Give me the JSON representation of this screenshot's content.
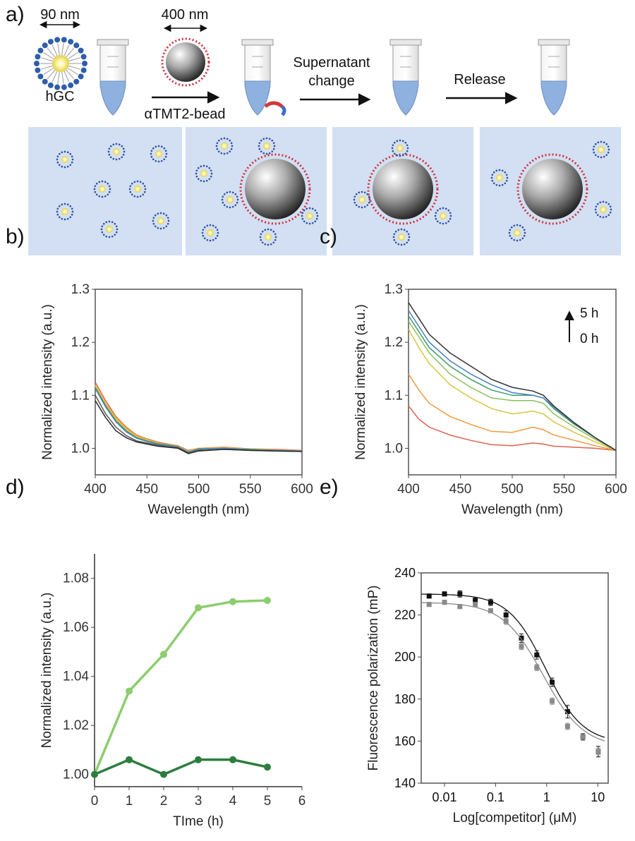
{
  "panels": {
    "a": {
      "label": "a)",
      "size_hgc": "90 nm",
      "size_bead": "400 nm",
      "hgc": "hGC",
      "bead": "αTMT2-bead",
      "step2": [
        "Supernatant",
        "change"
      ],
      "step3": "Release"
    },
    "b": {
      "label": "b)"
    },
    "c": {
      "label": "c)",
      "time_high": "5 h",
      "time_low": "0 h"
    },
    "d": {
      "label": "d)"
    },
    "e": {
      "label": "e)"
    }
  },
  "chart_data": [
    {
      "panel": "b",
      "type": "line",
      "xlabel": "Wavelength (nm)",
      "ylabel": "Normalized intensity (a.u.)",
      "xlim": [
        400,
        600
      ],
      "ylim": [
        0.95,
        1.3
      ],
      "xticks": [
        400,
        450,
        500,
        550,
        600
      ],
      "yticks": [
        "1.0",
        "1.1",
        "1.2",
        "1.3"
      ],
      "series": [
        {
          "color": "#e26a4f",
          "points": [
            [
              400,
              1.125
            ],
            [
              410,
              1.09
            ],
            [
              420,
              1.06
            ],
            [
              430,
              1.04
            ],
            [
              440,
              1.025
            ],
            [
              450,
              1.018
            ],
            [
              460,
              1.012
            ],
            [
              470,
              1.008
            ],
            [
              480,
              1.005
            ],
            [
              490,
              0.996
            ],
            [
              500,
              1.0
            ],
            [
              525,
              1.002
            ],
            [
              550,
              0.999
            ],
            [
              575,
              0.998
            ],
            [
              600,
              0.996
            ]
          ]
        },
        {
          "color": "#f0a040",
          "points": [
            [
              400,
              1.12
            ],
            [
              410,
              1.085
            ],
            [
              420,
              1.058
            ],
            [
              430,
              1.038
            ],
            [
              440,
              1.024
            ],
            [
              450,
              1.017
            ],
            [
              460,
              1.011
            ],
            [
              470,
              1.007
            ],
            [
              480,
              1.004
            ],
            [
              490,
              0.995
            ],
            [
              500,
              1.0
            ],
            [
              525,
              1.001
            ],
            [
              550,
              0.999
            ],
            [
              575,
              0.997
            ],
            [
              600,
              0.995
            ]
          ]
        },
        {
          "color": "#d6cd3e",
          "points": [
            [
              400,
              1.118
            ],
            [
              410,
              1.082
            ],
            [
              420,
              1.055
            ],
            [
              430,
              1.036
            ],
            [
              440,
              1.022
            ],
            [
              450,
              1.016
            ],
            [
              460,
              1.01
            ],
            [
              470,
              1.006
            ],
            [
              480,
              1.003
            ],
            [
              490,
              0.994
            ],
            [
              500,
              0.999
            ],
            [
              525,
              1.001
            ],
            [
              550,
              0.998
            ],
            [
              575,
              0.997
            ],
            [
              600,
              0.995
            ]
          ]
        },
        {
          "color": "#3f9b6a",
          "points": [
            [
              400,
              1.115
            ],
            [
              410,
              1.08
            ],
            [
              420,
              1.052
            ],
            [
              430,
              1.033
            ],
            [
              440,
              1.02
            ],
            [
              450,
              1.014
            ],
            [
              460,
              1.009
            ],
            [
              470,
              1.006
            ],
            [
              480,
              1.003
            ],
            [
              490,
              0.993
            ],
            [
              500,
              0.999
            ],
            [
              525,
              1.0
            ],
            [
              550,
              0.998
            ],
            [
              575,
              0.996
            ],
            [
              600,
              0.995
            ]
          ]
        },
        {
          "color": "#4a7fc1",
          "points": [
            [
              400,
              1.113
            ],
            [
              410,
              1.078
            ],
            [
              420,
              1.05
            ],
            [
              430,
              1.031
            ],
            [
              440,
              1.019
            ],
            [
              450,
              1.013
            ],
            [
              460,
              1.008
            ],
            [
              470,
              1.005
            ],
            [
              480,
              1.002
            ],
            [
              490,
              0.993
            ],
            [
              500,
              0.998
            ],
            [
              525,
              1.0
            ],
            [
              550,
              0.997
            ],
            [
              575,
              0.996
            ],
            [
              600,
              0.995
            ]
          ]
        },
        {
          "color": "#555555",
          "points": [
            [
              400,
              1.1
            ],
            [
              410,
              1.065
            ],
            [
              420,
              1.04
            ],
            [
              430,
              1.024
            ],
            [
              440,
              1.014
            ],
            [
              450,
              1.01
            ],
            [
              460,
              1.006
            ],
            [
              470,
              1.003
            ],
            [
              480,
              1.001
            ],
            [
              490,
              0.991
            ],
            [
              500,
              0.996
            ],
            [
              525,
              0.998
            ],
            [
              550,
              0.996
            ],
            [
              575,
              0.995
            ],
            [
              600,
              0.994
            ]
          ]
        },
        {
          "color": "#2a2a2a",
          "points": [
            [
              400,
              1.09
            ],
            [
              410,
              1.058
            ],
            [
              420,
              1.033
            ],
            [
              430,
              1.02
            ],
            [
              440,
              1.012
            ],
            [
              450,
              1.008
            ],
            [
              460,
              1.004
            ],
            [
              470,
              1.002
            ],
            [
              480,
              1.0
            ],
            [
              490,
              0.99
            ],
            [
              500,
              0.995
            ],
            [
              525,
              0.998
            ],
            [
              550,
              0.996
            ],
            [
              575,
              0.995
            ],
            [
              600,
              0.994
            ]
          ]
        }
      ]
    },
    {
      "panel": "c",
      "type": "line",
      "xlabel": "Wavelength (nm)",
      "ylabel": "Normalized intensity (a.u.)",
      "xlim": [
        400,
        600
      ],
      "ylim": [
        0.95,
        1.3
      ],
      "xticks": [
        400,
        450,
        500,
        550,
        600
      ],
      "yticks": [
        "1.0",
        "1.1",
        "1.2",
        "1.3"
      ],
      "series": [
        {
          "color": "#e0604e",
          "points": [
            [
              400,
              1.08
            ],
            [
              410,
              1.055
            ],
            [
              420,
              1.04
            ],
            [
              440,
              1.025
            ],
            [
              460,
              1.015
            ],
            [
              480,
              1.007
            ],
            [
              500,
              1.005
            ],
            [
              520,
              1.01
            ],
            [
              530,
              1.008
            ],
            [
              540,
              1.004
            ],
            [
              560,
              1.002
            ],
            [
              580,
              1.0
            ],
            [
              600,
              0.996
            ]
          ]
        },
        {
          "color": "#f09a3c",
          "points": [
            [
              400,
              1.14
            ],
            [
              410,
              1.11
            ],
            [
              420,
              1.085
            ],
            [
              440,
              1.06
            ],
            [
              460,
              1.045
            ],
            [
              480,
              1.032
            ],
            [
              500,
              1.03
            ],
            [
              520,
              1.04
            ],
            [
              530,
              1.035
            ],
            [
              540,
              1.025
            ],
            [
              560,
              1.015
            ],
            [
              580,
              1.005
            ],
            [
              600,
              0.996
            ]
          ]
        },
        {
          "color": "#d8c63f",
          "points": [
            [
              400,
              1.225
            ],
            [
              410,
              1.19
            ],
            [
              420,
              1.16
            ],
            [
              440,
              1.12
            ],
            [
              460,
              1.095
            ],
            [
              480,
              1.075
            ],
            [
              500,
              1.065
            ],
            [
              520,
              1.07
            ],
            [
              530,
              1.065
            ],
            [
              540,
              1.05
            ],
            [
              560,
              1.03
            ],
            [
              580,
              1.012
            ],
            [
              600,
              0.996
            ]
          ]
        },
        {
          "color": "#8cbf5a",
          "points": [
            [
              400,
              1.24
            ],
            [
              410,
              1.21
            ],
            [
              420,
              1.18
            ],
            [
              440,
              1.14
            ],
            [
              460,
              1.115
            ],
            [
              480,
              1.095
            ],
            [
              500,
              1.09
            ],
            [
              520,
              1.09
            ],
            [
              530,
              1.085
            ],
            [
              540,
              1.065
            ],
            [
              560,
              1.04
            ],
            [
              580,
              1.017
            ],
            [
              600,
              0.996
            ]
          ]
        },
        {
          "color": "#3e9a6a",
          "points": [
            [
              400,
              1.25
            ],
            [
              410,
              1.22
            ],
            [
              420,
              1.19
            ],
            [
              440,
              1.155
            ],
            [
              460,
              1.13
            ],
            [
              480,
              1.11
            ],
            [
              500,
              1.1
            ],
            [
              520,
              1.1
            ],
            [
              530,
              1.095
            ],
            [
              540,
              1.075
            ],
            [
              560,
              1.045
            ],
            [
              580,
              1.02
            ],
            [
              600,
              0.996
            ]
          ]
        },
        {
          "color": "#4a7fc1",
          "points": [
            [
              400,
              1.26
            ],
            [
              410,
              1.23
            ],
            [
              420,
              1.2
            ],
            [
              440,
              1.165
            ],
            [
              460,
              1.14
            ],
            [
              480,
              1.12
            ],
            [
              500,
              1.105
            ],
            [
              520,
              1.1
            ],
            [
              530,
              1.095
            ],
            [
              540,
              1.078
            ],
            [
              560,
              1.047
            ],
            [
              580,
              1.02
            ],
            [
              600,
              0.996
            ]
          ]
        },
        {
          "color": "#333333",
          "points": [
            [
              400,
              1.275
            ],
            [
              410,
              1.245
            ],
            [
              420,
              1.215
            ],
            [
              440,
              1.18
            ],
            [
              460,
              1.155
            ],
            [
              480,
              1.13
            ],
            [
              500,
              1.115
            ],
            [
              520,
              1.108
            ],
            [
              530,
              1.1
            ],
            [
              540,
              1.08
            ],
            [
              560,
              1.048
            ],
            [
              580,
              1.02
            ],
            [
              600,
              0.996
            ]
          ]
        }
      ]
    },
    {
      "panel": "d",
      "type": "line",
      "xlabel": "TIme (h)",
      "ylabel": "Normalized intensity (a.u.)",
      "xlim": [
        0,
        6
      ],
      "ylim": [
        0.995,
        1.09
      ],
      "xticks": [
        0,
        1,
        2,
        3,
        4,
        5,
        6
      ],
      "yticks": [
        "1.00",
        "1.02",
        "1.04",
        "1.06",
        "1.08"
      ],
      "series": [
        {
          "color": "#8ccd6e",
          "x": [
            0,
            1,
            2,
            3,
            4,
            5
          ],
          "values": [
            1.0,
            1.034,
            1.049,
            1.068,
            1.0705,
            1.071
          ]
        },
        {
          "color": "#2c7d3e",
          "x": [
            0,
            1,
            2,
            3,
            4,
            5
          ],
          "values": [
            1.0,
            1.006,
            1.0,
            1.006,
            1.006,
            1.003
          ]
        }
      ]
    },
    {
      "panel": "e",
      "type": "scatter",
      "xlabel": "Log[competitor] (μM)",
      "ylabel": "Fluorescence polarization (mP)",
      "xscale": "log",
      "xlim": [
        0.0035,
        16
      ],
      "ylim": [
        140,
        240
      ],
      "xticks": [
        0.01,
        0.1,
        1,
        10
      ],
      "xticklabels": [
        "0.01",
        "0.1",
        "1",
        "10"
      ],
      "yticks": [
        140,
        160,
        180,
        200,
        220,
        240
      ],
      "series": [
        {
          "color": "#111111",
          "marker": "square",
          "x": [
            0.005,
            0.01,
            0.02,
            0.04,
            0.08,
            0.16,
            0.32,
            0.64,
            1.28,
            2.56,
            5.12,
            10.24
          ],
          "values": [
            229,
            230,
            230,
            227,
            226,
            220,
            209,
            201,
            188,
            174,
            162,
            155
          ],
          "err": [
            1,
            1,
            1.5,
            1,
            1.5,
            2,
            2,
            2,
            2,
            3,
            1.5,
            2.5
          ],
          "fit": {
            "top": 230,
            "bottom": 159,
            "ic50": 0.95,
            "hill": 1.2
          }
        },
        {
          "color": "#8a8a8a",
          "marker": "square",
          "x": [
            0.005,
            0.01,
            0.02,
            0.04,
            0.08,
            0.16,
            0.32,
            0.64,
            1.28,
            2.56,
            5.12,
            10.24
          ],
          "values": [
            225,
            226,
            224,
            225,
            222,
            217,
            205,
            195,
            179,
            167,
            162,
            155
          ],
          "err": [
            1,
            1,
            1,
            1,
            1,
            1.5,
            1.5,
            1.5,
            1.5,
            1.5,
            1,
            1.5
          ],
          "fit": {
            "top": 226,
            "bottom": 157,
            "ic50": 0.85,
            "hill": 1.1
          }
        }
      ]
    }
  ]
}
